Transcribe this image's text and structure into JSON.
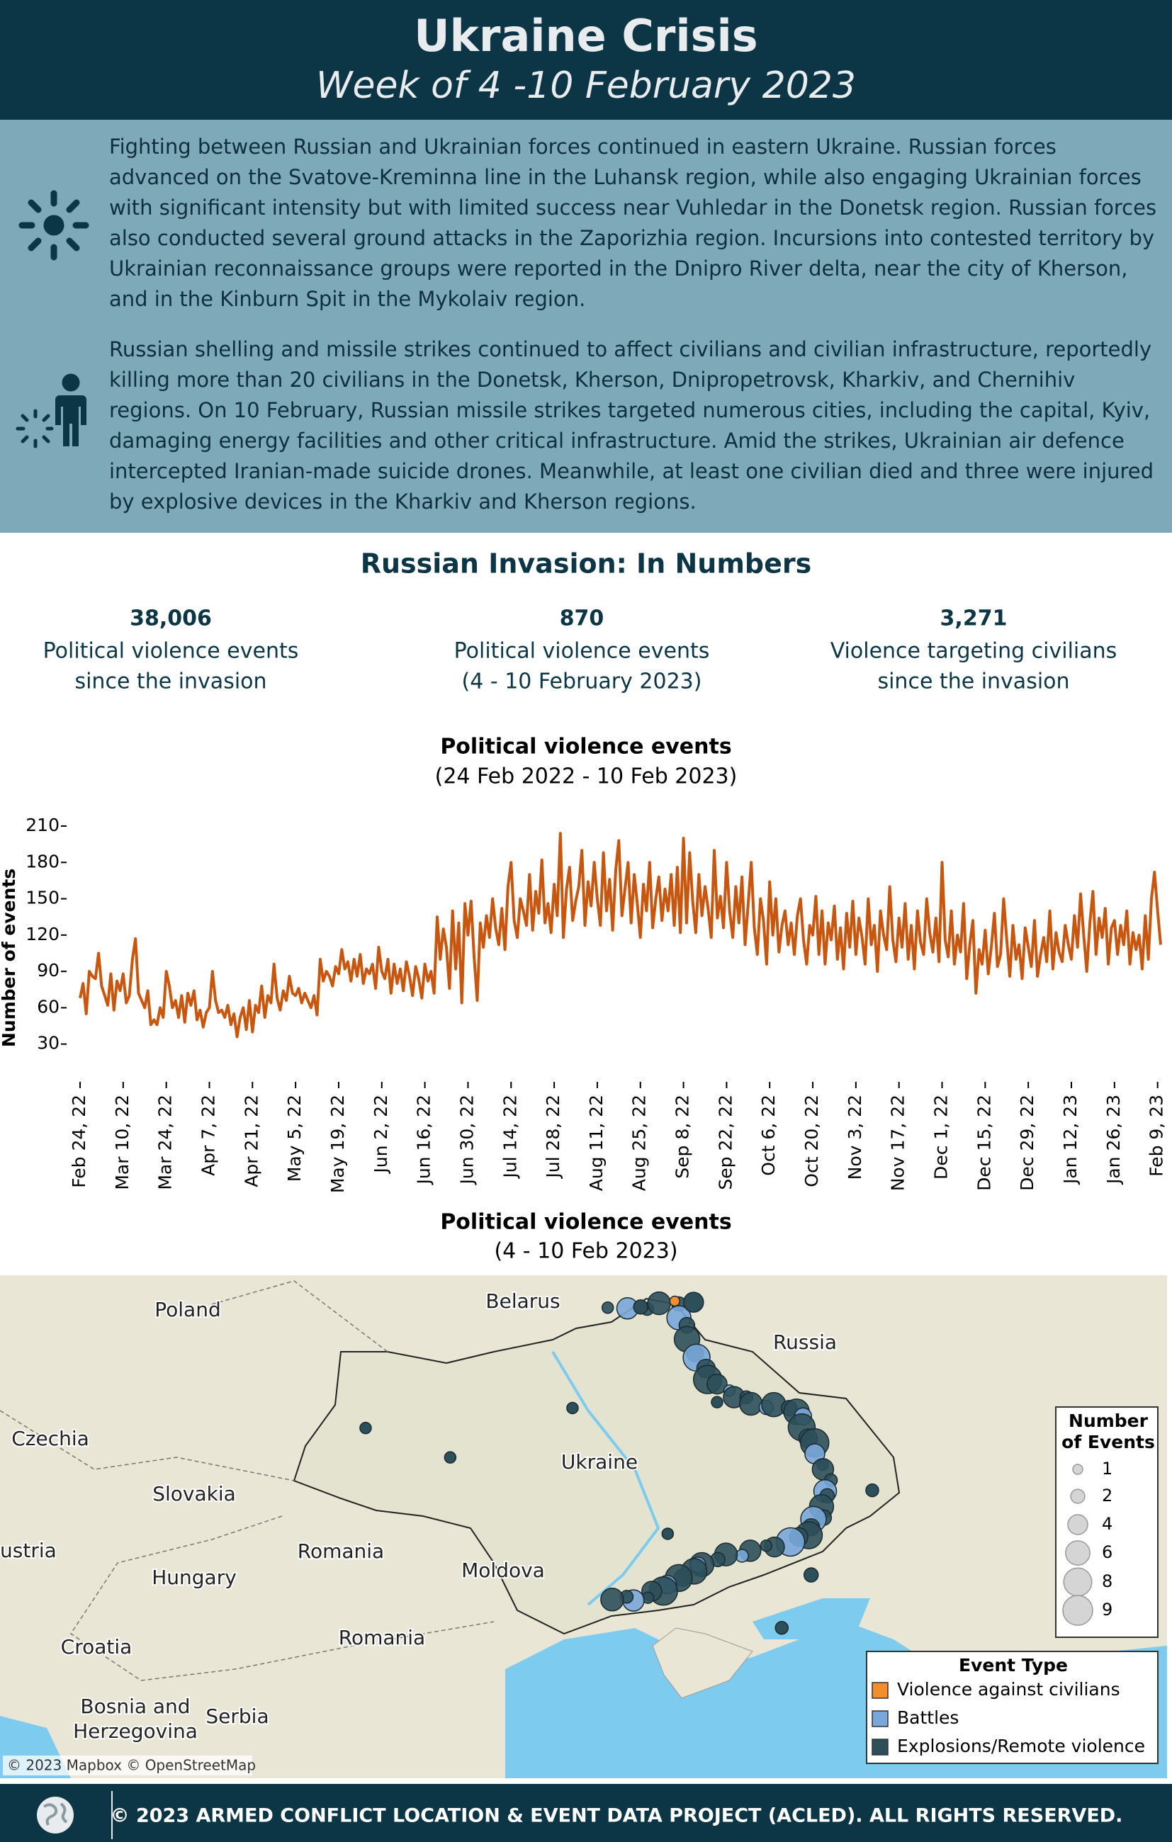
{
  "header": {
    "title": "Ukraine Crisis",
    "subtitle": "Week of 4 -10 February 2023"
  },
  "summary": {
    "paragraphs": [
      "Fighting between Russian and Ukrainian forces continued in eastern Ukraine. Russian forces advanced on the Svatove-Kreminna line in the Luhansk region, while also engaging Ukrainian forces with significant intensity but with limited success near Vuhledar in the Donetsk region. Russian forces also conducted several ground attacks in the Zaporizhia region. Incursions into contested territory by Ukrainian reconnaissance groups were reported in the Dnipro River delta, near the city of Kherson, and in the Kinburn Spit in the Mykolaiv region.",
      "Russian shelling and missile strikes continued to affect civilians and civilian infrastructure, reportedly killing more than 20 civilians in the Donetsk, Kherson, Dnipropetrovsk, Kharkiv, and Chernihiv regions. On 10 February, Russian missile strikes targeted numerous cities, including the capital, Kyiv, damaging energy facilities and other critical infrastructure. Amid the strikes, Ukrainian air defence intercepted Iranian-made suicide drones. Meanwhile, at least one civilian died and three were injured by explosive devices in the Kharkiv and Kherson regions."
    ]
  },
  "numbers": {
    "title": "Russian Invasion: In Numbers",
    "items": [
      {
        "value": "38,006",
        "label_lines": [
          "Political violence events",
          "since the invasion"
        ]
      },
      {
        "value": "870",
        "label_lines": [
          "Political violence events",
          "(4 - 10 February 2023)"
        ]
      },
      {
        "value": "3,271",
        "label_lines": [
          "Violence targeting civilians",
          "since the invasion"
        ]
      }
    ]
  },
  "chart_data": {
    "type": "line",
    "title": "Political violence events",
    "subtitle": "(24 Feb 2022 - 10 Feb 2023)",
    "y_label": "Number of events",
    "color": "#c9560e",
    "xlim": [
      0,
      351
    ],
    "ylim": [
      0,
      210
    ],
    "yticks": [
      30,
      60,
      90,
      120,
      150,
      180,
      210
    ],
    "xticks": [
      {
        "value": 0,
        "label": "Feb 24, 22"
      },
      {
        "value": 14,
        "label": "Mar 10, 22"
      },
      {
        "value": 28,
        "label": "Mar 24, 22"
      },
      {
        "value": 42,
        "label": "Apr 7, 22"
      },
      {
        "value": 56,
        "label": "Apr 21, 22"
      },
      {
        "value": 70,
        "label": "May 5, 22"
      },
      {
        "value": 84,
        "label": "May 19, 22"
      },
      {
        "value": 98,
        "label": "Jun 2, 22"
      },
      {
        "value": 112,
        "label": "Jun 16, 22"
      },
      {
        "value": 126,
        "label": "Jun 30, 22"
      },
      {
        "value": 140,
        "label": "Jul 14, 22"
      },
      {
        "value": 154,
        "label": "Jul 28, 22"
      },
      {
        "value": 168,
        "label": "Aug 11, 22"
      },
      {
        "value": 182,
        "label": "Aug 25, 22"
      },
      {
        "value": 196,
        "label": "Sep 8, 22"
      },
      {
        "value": 210,
        "label": "Sep 22, 22"
      },
      {
        "value": 224,
        "label": "Oct 6, 22"
      },
      {
        "value": 238,
        "label": "Oct 20, 22"
      },
      {
        "value": 252,
        "label": "Nov 3, 22"
      },
      {
        "value": 266,
        "label": "Nov 17, 22"
      },
      {
        "value": 280,
        "label": "Dec 1, 22"
      },
      {
        "value": 294,
        "label": "Dec 15, 22"
      },
      {
        "value": 308,
        "label": "Dec 29, 22"
      },
      {
        "value": 322,
        "label": "Jan 12, 23"
      },
      {
        "value": 336,
        "label": "Jan 26, 23"
      },
      {
        "value": 350,
        "label": "Feb 9, 23"
      }
    ],
    "values": [
      68,
      80,
      55,
      90,
      86,
      84,
      105,
      78,
      70,
      62,
      88,
      58,
      82,
      74,
      88,
      64,
      70,
      100,
      117,
      72,
      66,
      60,
      74,
      46,
      50,
      46,
      60,
      52,
      90,
      78,
      60,
      66,
      52,
      70,
      48,
      72,
      62,
      74,
      50,
      58,
      44,
      56,
      60,
      90,
      66,
      56,
      58,
      52,
      62,
      46,
      55,
      36,
      52,
      60,
      42,
      66,
      40,
      62,
      56,
      78,
      52,
      70,
      64,
      96,
      68,
      58,
      74,
      66,
      86,
      72,
      70,
      76,
      64,
      72,
      66,
      60,
      70,
      54,
      100,
      82,
      90,
      86,
      78,
      94,
      88,
      108,
      92,
      98,
      82,
      100,
      86,
      104,
      80,
      92,
      88,
      96,
      76,
      110,
      90,
      84,
      100,
      72,
      96,
      80,
      92,
      74,
      98,
      86,
      70,
      94,
      84,
      68,
      96,
      82,
      90,
      72,
      135,
      100,
      125,
      110,
      76,
      140,
      92,
      130,
      64,
      146,
      120,
      148,
      102,
      66,
      130,
      110,
      136,
      118,
      150,
      126,
      112,
      142,
      108,
      160,
      180,
      132,
      118,
      150,
      140,
      128,
      170,
      124,
      156,
      138,
      182,
      130,
      146,
      122,
      162,
      136,
      204,
      118,
      158,
      176,
      132,
      148,
      160,
      190,
      128,
      164,
      144,
      180,
      150,
      128,
      188,
      140,
      166,
      124,
      174,
      198,
      136,
      158,
      180,
      130,
      170,
      146,
      118,
      162,
      140,
      180,
      126,
      150,
      168,
      132,
      158,
      140,
      170,
      128,
      176,
      122,
      200,
      130,
      188,
      148,
      122,
      170,
      136,
      160,
      142,
      118,
      190,
      134,
      152,
      126,
      180,
      140,
      118,
      160,
      130,
      168,
      112,
      145,
      180,
      126,
      104,
      150,
      132,
      96,
      164,
      120,
      150,
      106,
      128,
      140,
      112,
      130,
      104,
      136,
      150,
      116,
      96,
      128,
      120,
      152,
      104,
      140,
      96,
      130,
      116,
      144,
      100,
      126,
      92,
      138,
      110,
      148,
      104,
      134,
      118,
      96,
      150,
      112,
      128,
      90,
      140,
      120,
      108,
      160,
      116,
      98,
      134,
      110,
      146,
      100,
      128,
      92,
      140,
      114,
      104,
      150,
      122,
      106,
      134,
      98,
      180,
      116,
      102,
      140,
      96,
      120,
      106,
      146,
      84,
      112,
      132,
      72,
      108,
      96,
      124,
      88,
      110,
      138,
      94,
      104,
      150,
      116,
      86,
      128,
      100,
      112,
      84,
      126,
      110,
      94,
      132,
      86,
      104,
      118,
      98,
      140,
      92,
      122,
      106,
      98,
      128,
      112,
      100,
      136,
      110,
      154,
      120,
      90,
      130,
      156,
      104,
      134,
      118,
      142,
      96,
      126,
      132,
      104,
      128,
      112,
      140,
      96,
      122,
      108,
      120,
      92,
      136,
      100,
      150,
      172,
      140,
      112
    ]
  },
  "map": {
    "title": "Political violence events",
    "subtitle": "(4 - 10 Feb 2023)",
    "labels": [
      "Poland",
      "Belarus",
      "Russia",
      "Czechia",
      "Ukraine",
      "Slovakia",
      "ustria",
      "Romania",
      "Moldova",
      "Hungary",
      "Romania",
      "Croatia",
      "Bosnia and",
      "Herzegovina",
      "Serbia"
    ],
    "credit": "© 2023 Mapbox © OpenStreetMap",
    "size_legend": {
      "title_lines": [
        "Number",
        "of Events"
      ],
      "values": [
        1,
        2,
        4,
        6,
        8,
        9
      ]
    },
    "type_legend": {
      "title": "Event Type",
      "items": [
        {
          "name": "Violence against civilians",
          "color": "#f28e2b"
        },
        {
          "name": "Battles",
          "color": "#79a7d9"
        },
        {
          "name": "Explosions/Remote violence",
          "color": "#2c4f5a"
        }
      ]
    }
  },
  "footer": {
    "text": "© 2023 ARMED CONFLICT LOCATION & EVENT DATA PROJECT (ACLED). ALL RIGHTS RESERVED."
  }
}
